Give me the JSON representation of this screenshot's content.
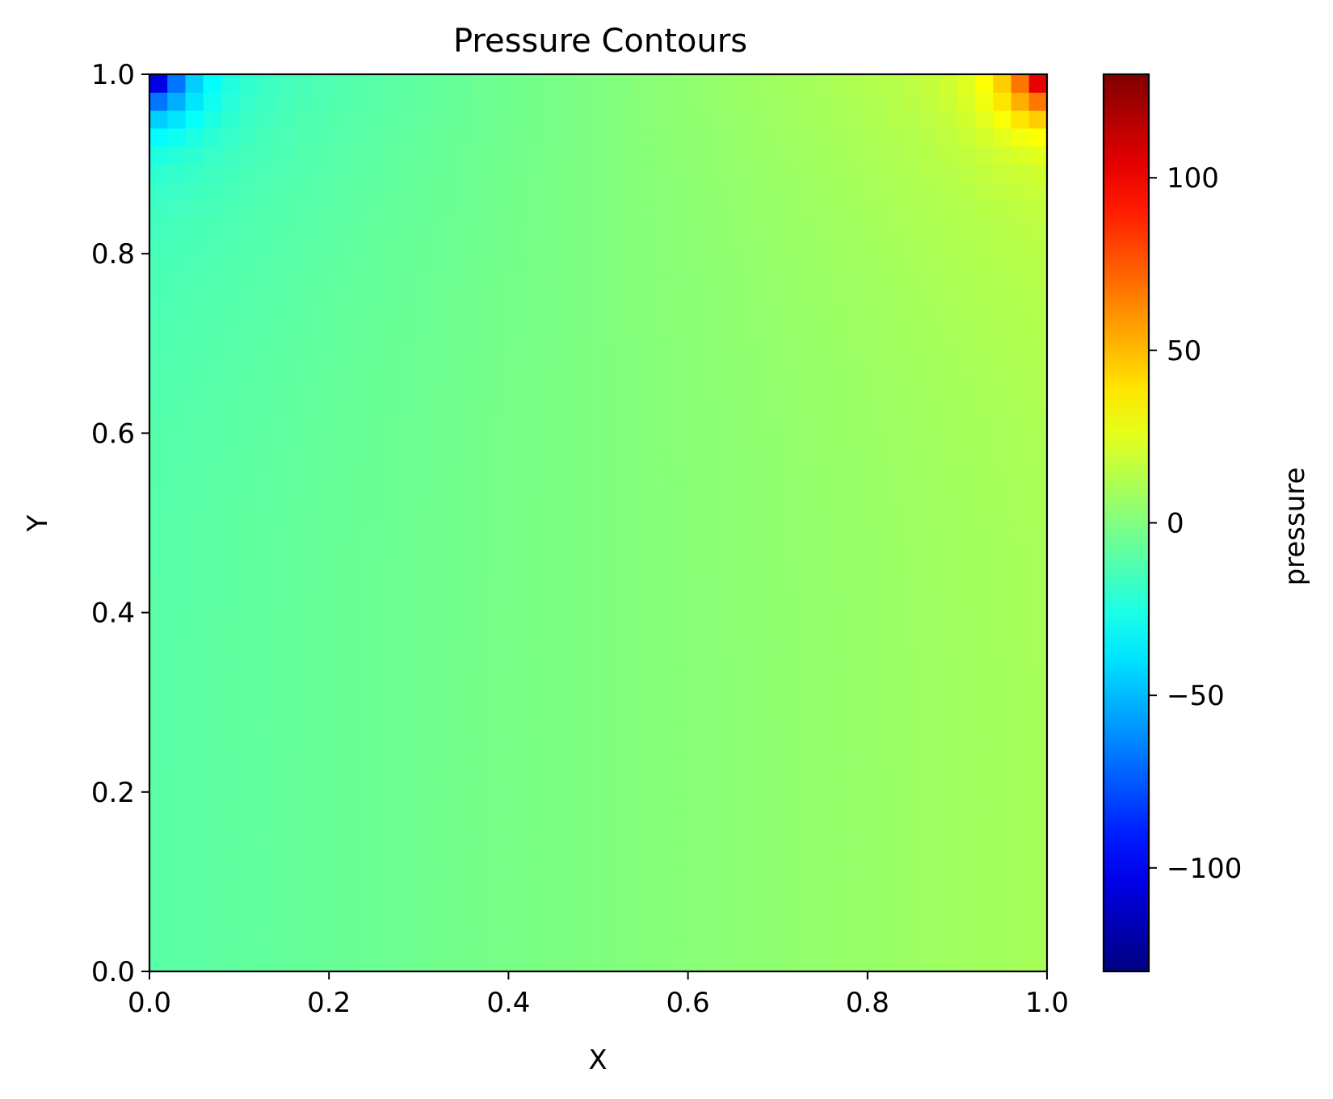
{
  "chart_data": {
    "type": "heatmap",
    "title": "Pressure Contours",
    "xlabel": "X",
    "ylabel": "Y",
    "xlim": [
      0.0,
      1.0
    ],
    "ylim": [
      0.0,
      1.0
    ],
    "x_ticks": [
      "0.0",
      "0.2",
      "0.4",
      "0.6",
      "0.8",
      "1.0"
    ],
    "y_ticks": [
      "0.0",
      "0.2",
      "0.4",
      "0.6",
      "0.8",
      "1.0"
    ],
    "grid": false,
    "colorbar": {
      "label": "pressure",
      "colormap": "jet",
      "vmin": -130,
      "vmax": 130,
      "ticks": [
        100,
        50,
        0,
        -50,
        -100
      ],
      "tick_labels": [
        "100",
        "50",
        "0",
        "−50",
        "−100"
      ]
    },
    "grid_cells": [
      50,
      50
    ],
    "field_description": {
      "background_value": 0,
      "left_edge_value": -10,
      "right_edge_value": 10,
      "top_left_corner_min": -130,
      "top_right_corner_max": 130,
      "top_right_near_values": [
        85,
        70,
        55,
        45,
        35
      ]
    }
  }
}
